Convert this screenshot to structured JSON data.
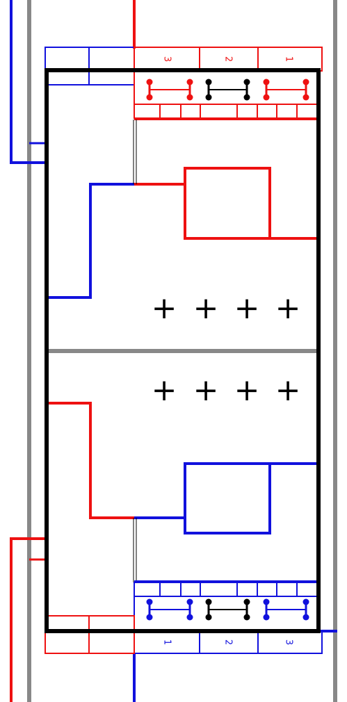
{
  "colors": {
    "red": "#ee1111",
    "blue": "#1111dd",
    "black": "#000000",
    "gray": "#888888"
  },
  "top_block": {
    "terminal_labels": [
      "3",
      "2",
      "1"
    ],
    "terminal_colors": [
      "red",
      "red",
      "black",
      "black",
      "red",
      "red"
    ],
    "markers": [
      "+",
      "+",
      "+",
      "+"
    ]
  },
  "bottom_block": {
    "terminal_labels": [
      "1",
      "2",
      "3"
    ],
    "terminal_colors": [
      "blue",
      "blue",
      "black",
      "black",
      "blue",
      "blue"
    ],
    "markers": [
      "+",
      "+",
      "+",
      "+"
    ]
  }
}
